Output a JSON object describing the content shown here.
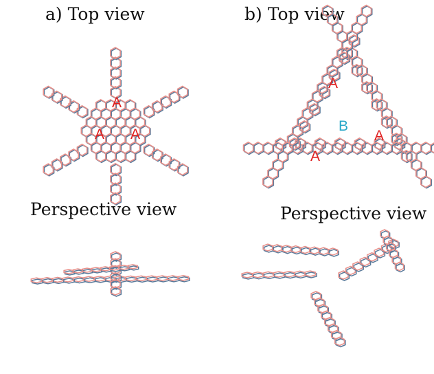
{
  "panel_a": {
    "title": "a) Top view",
    "perspective_title": "Perspective view",
    "ring_labels": [
      "A",
      "A",
      "A"
    ]
  },
  "panel_b": {
    "title": "b) Top view",
    "perspective_title": "Perspective view",
    "ring_labels": [
      "A",
      "A",
      "A"
    ],
    "center_label": "B"
  },
  "colors": {
    "structure_red": "#e8908a",
    "structure_blue": "#5a7a9a",
    "label_A": "#e02020",
    "label_B": "#2aa8c8"
  }
}
